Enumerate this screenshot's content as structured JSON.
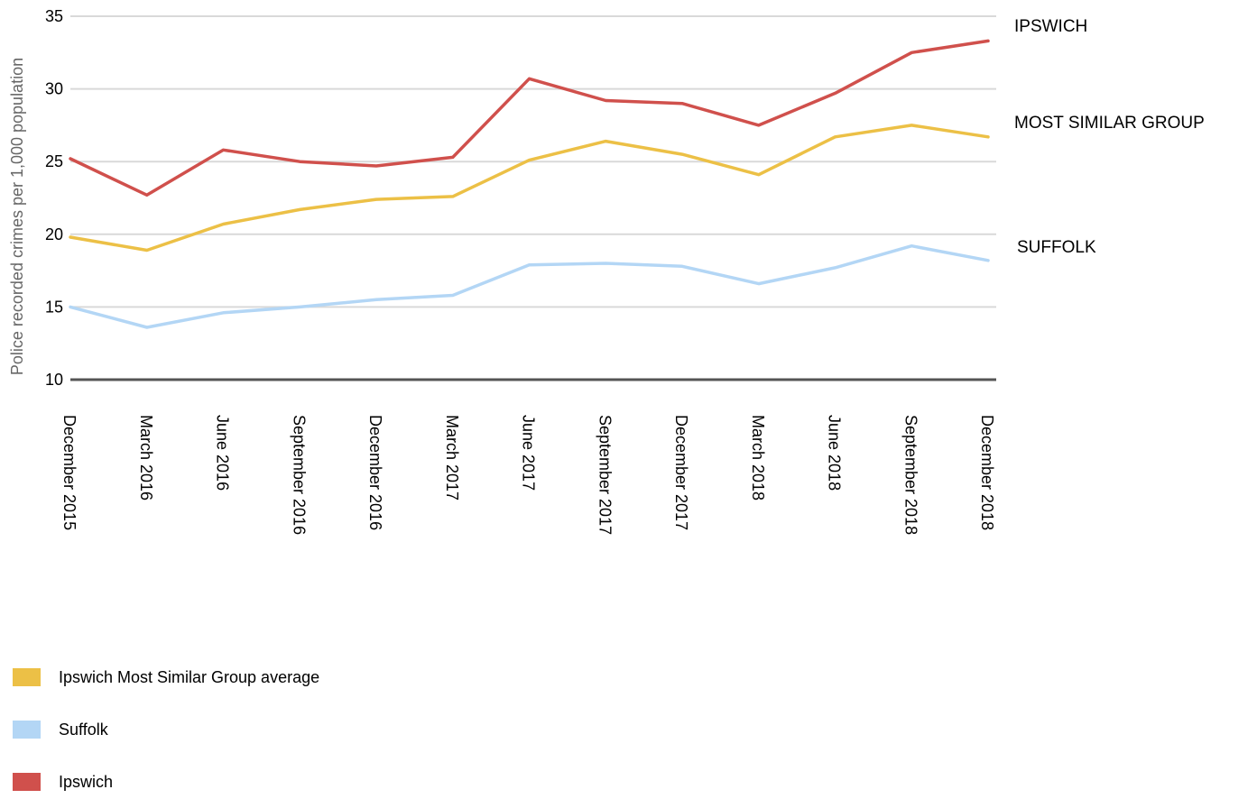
{
  "chart_data": {
    "type": "line",
    "ylabel": "Police recorded crimes per 1,000 population",
    "xlabel": "",
    "ylim": [
      10,
      35
    ],
    "yticks": [
      10,
      15,
      20,
      25,
      30,
      35
    ],
    "grid": true,
    "categories": [
      "December 2015",
      "March 2016",
      "June 2016",
      "September 2016",
      "December 2016",
      "March 2017",
      "June 2017",
      "September 2017",
      "December 2017",
      "March 2018",
      "June 2018",
      "September 2018",
      "December 2018"
    ],
    "series": [
      {
        "name": "Ipswich",
        "label": "IPSWICH",
        "color": "#d0504c",
        "values": [
          25.2,
          22.7,
          25.8,
          25.0,
          24.7,
          25.3,
          30.7,
          29.2,
          29.0,
          27.5,
          29.7,
          32.5,
          33.3
        ]
      },
      {
        "name": "Ipswich Most Similar Group average",
        "label": "MOST SIMILAR GROUP",
        "color": "#ecc046",
        "values": [
          19.8,
          18.9,
          20.7,
          21.7,
          22.4,
          22.6,
          25.1,
          26.4,
          25.5,
          24.1,
          26.7,
          27.5,
          26.7
        ]
      },
      {
        "name": "Suffolk",
        "label": "SUFFOLK",
        "color": "#b3d6f5",
        "values": [
          15.0,
          13.6,
          14.6,
          15.0,
          15.5,
          15.8,
          17.9,
          18.0,
          17.8,
          16.6,
          17.7,
          19.2,
          18.2
        ]
      }
    ],
    "legend": {
      "placement": "bottom-left",
      "items": [
        {
          "label": "Ipswich Most Similar Group average",
          "color": "#ecc046"
        },
        {
          "label": "Suffolk",
          "color": "#b3d6f5"
        },
        {
          "label": "Ipswich",
          "color": "#d0504c"
        }
      ]
    }
  }
}
